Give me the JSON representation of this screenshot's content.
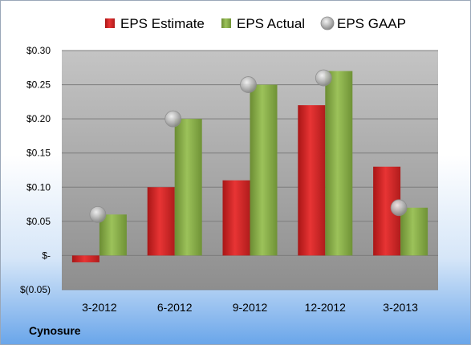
{
  "chart_data": {
    "type": "bar",
    "title": "",
    "xlabel": "",
    "ylabel": "",
    "categories": [
      "3-2012",
      "6-2012",
      "9-2012",
      "12-2012",
      "3-2013"
    ],
    "series": [
      {
        "name": "EPS Estimate",
        "kind": "bar",
        "color": "#d42a2a",
        "values": [
          -0.01,
          0.1,
          0.11,
          0.22,
          0.13
        ]
      },
      {
        "name": "EPS Actual",
        "kind": "bar",
        "color": "#8db04a",
        "values": [
          0.06,
          0.2,
          0.25,
          0.27,
          0.07
        ]
      },
      {
        "name": "EPS GAAP",
        "kind": "marker",
        "color": "#b8b8b8",
        "values": [
          0.06,
          0.2,
          0.25,
          0.26,
          0.07
        ]
      }
    ],
    "ylim": [
      -0.05,
      0.3
    ],
    "yticks": [
      0.3,
      0.25,
      0.2,
      0.15,
      0.1,
      0.05,
      0,
      -0.05
    ],
    "ytick_labels": [
      "$0.30",
      "$0.25",
      "$0.20",
      "$0.15",
      "$0.10",
      "$0.05",
      "$-",
      "$(0.05)"
    ],
    "grid": true,
    "legend_position": "top"
  },
  "company": "Cynosure"
}
